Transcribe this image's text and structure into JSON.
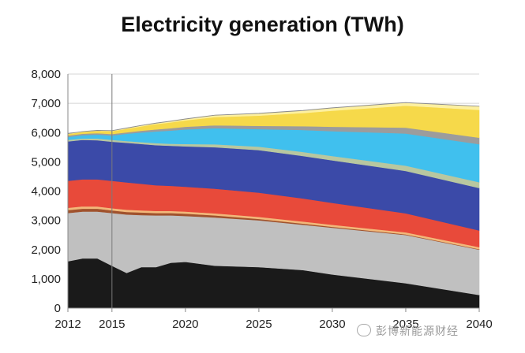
{
  "chart_data": {
    "type": "area",
    "stacked": true,
    "title": "Electricity generation (TWh)",
    "xlabel": "",
    "ylabel": "",
    "xlim": [
      2012,
      2040
    ],
    "ylim": [
      0,
      8000
    ],
    "x_ticks": [
      2012,
      2015,
      2020,
      2025,
      2030,
      2035,
      2040
    ],
    "y_ticks": [
      0,
      1000,
      2000,
      3000,
      4000,
      5000,
      6000,
      7000,
      8000
    ],
    "y_tick_labels": [
      "0",
      "1,000",
      "2,000",
      "3,000",
      "4,000",
      "5,000",
      "6,000",
      "7,000",
      "8,000"
    ],
    "grid": "horizontal",
    "legend": "none",
    "reference_line_x": 2015,
    "x": [
      2012,
      2013,
      2014,
      2015,
      2016,
      2017,
      2018,
      2019,
      2020,
      2022,
      2025,
      2028,
      2030,
      2035,
      2040
    ],
    "series": [
      {
        "color": "#1a1a1a",
        "values": [
          1600,
          1700,
          1700,
          1450,
          1200,
          1400,
          1400,
          1550,
          1580,
          1450,
          1400,
          1300,
          1150,
          850,
          450
        ]
      },
      {
        "color": "#c0c0c0",
        "values": [
          1650,
          1600,
          1600,
          1800,
          2000,
          1780,
          1770,
          1620,
          1570,
          1650,
          1600,
          1550,
          1600,
          1650,
          1550
        ]
      },
      {
        "color": "#a0522d",
        "values": [
          100,
          100,
          100,
          90,
          90,
          90,
          80,
          80,
          80,
          70,
          50,
          40,
          30,
          20,
          15
        ]
      },
      {
        "color": "#f2b87a",
        "values": [
          80,
          80,
          75,
          75,
          75,
          70,
          70,
          70,
          70,
          70,
          70,
          70,
          70,
          70,
          70
        ]
      },
      {
        "color": "#e84a3a",
        "values": [
          920,
          920,
          925,
          935,
          935,
          910,
          880,
          860,
          850,
          840,
          830,
          790,
          750,
          650,
          570
        ]
      },
      {
        "color": "#3b4aa8",
        "values": [
          1350,
          1350,
          1340,
          1340,
          1350,
          1360,
          1370,
          1370,
          1380,
          1420,
          1450,
          1450,
          1450,
          1450,
          1450
        ]
      },
      {
        "color": "#b8c7a0",
        "values": [
          50,
          50,
          60,
          60,
          60,
          65,
          70,
          70,
          80,
          100,
          120,
          140,
          150,
          180,
          200
        ]
      },
      {
        "color": "#40c0ee",
        "values": [
          100,
          110,
          130,
          150,
          250,
          330,
          400,
          450,
          500,
          550,
          600,
          750,
          850,
          1100,
          1300
        ]
      },
      {
        "color": "#9c9c9c",
        "values": [
          50,
          50,
          50,
          50,
          50,
          60,
          70,
          80,
          90,
          100,
          110,
          130,
          150,
          200,
          220
        ]
      },
      {
        "color": "#f6d94a",
        "values": [
          50,
          60,
          80,
          100,
          120,
          150,
          180,
          200,
          220,
          280,
          350,
          450,
          550,
          750,
          950
        ]
      },
      {
        "color": "#fdf0a0",
        "values": [
          10,
          10,
          10,
          10,
          20,
          25,
          30,
          35,
          40,
          60,
          70,
          80,
          90,
          100,
          120
        ]
      },
      {
        "color": "#8c8c8c",
        "values": [
          10,
          10,
          10,
          10,
          10,
          10,
          10,
          10,
          10,
          10,
          10,
          10,
          10,
          10,
          10
        ]
      }
    ]
  },
  "watermark": "彭博新能源财经"
}
